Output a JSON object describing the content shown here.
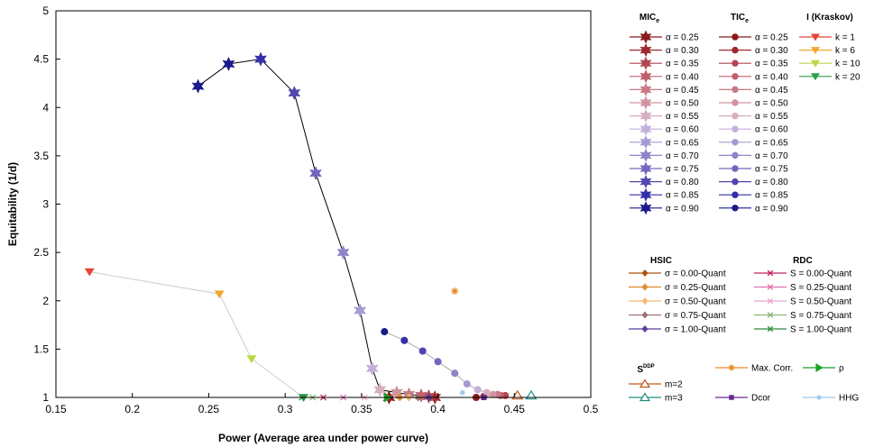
{
  "chart_data": {
    "type": "scatter",
    "xlabel": "Power (Average area under power curve)",
    "ylabel": "Equitability (1/d)",
    "xlim": [
      0.15,
      0.5
    ],
    "ylim": [
      1,
      5
    ],
    "x_ticks": [
      "0.15",
      "0.2",
      "0.25",
      "0.3",
      "0.35",
      "0.4",
      "0.45",
      "0.5"
    ],
    "y_ticks": [
      "1",
      "1.5",
      "2",
      "2.5",
      "3",
      "3.5",
      "4",
      "4.5",
      "5"
    ],
    "grid": false,
    "legend_placement": "right",
    "groups": [
      {
        "title": "MIC",
        "title_sub": "e",
        "marker": "star",
        "connected": true,
        "series": [
          {
            "name": "α = 0.25",
            "color": "#8b1a1a",
            "x": 0.368,
            "y": 1.0
          },
          {
            "name": "α = 0.30",
            "color": "#a0282d",
            "x": 0.398,
            "y": 1.0
          },
          {
            "name": "α = 0.35",
            "color": "#b34652",
            "x": 0.394,
            "y": 1.01
          },
          {
            "name": "α = 0.40",
            "color": "#c0606c",
            "x": 0.389,
            "y": 1.02
          },
          {
            "name": "α = 0.45",
            "color": "#c97a86",
            "x": 0.381,
            "y": 1.03
          },
          {
            "name": "α = 0.50",
            "color": "#d094a0",
            "x": 0.373,
            "y": 1.05
          },
          {
            "name": "α = 0.55",
            "color": "#d6aec0",
            "x": 0.362,
            "y": 1.08
          },
          {
            "name": "α = 0.60",
            "color": "#c4aedb",
            "x": 0.357,
            "y": 1.3
          },
          {
            "name": "α = 0.65",
            "color": "#a59ad2",
            "x": 0.349,
            "y": 1.9
          },
          {
            "name": "α = 0.70",
            "color": "#8e84c8",
            "x": 0.338,
            "y": 2.5
          },
          {
            "name": "α = 0.75",
            "color": "#7366bd",
            "x": 0.32,
            "y": 3.32
          },
          {
            "name": "α = 0.80",
            "color": "#5145b0",
            "x": 0.306,
            "y": 4.15
          },
          {
            "name": "α = 0.85",
            "color": "#3330a6",
            "x": 0.284,
            "y": 4.5
          },
          {
            "name": "α = 0.90",
            "color": "#1a1a8c",
            "x": 0.263,
            "y": 4.45
          },
          {
            "name": "",
            "color": "#1a1a8c",
            "x": 0.243,
            "y": 4.22
          }
        ]
      },
      {
        "title": "TIC",
        "title_sub": "e",
        "marker": "circle",
        "connected": true,
        "series": [
          {
            "name": "α = 0.25",
            "color": "#8b1a1a",
            "x": 0.425,
            "y": 1.0
          },
          {
            "name": "α = 0.30",
            "color": "#a0282d",
            "x": 0.43,
            "y": 1.01
          },
          {
            "name": "α = 0.35",
            "color": "#b34652",
            "x": 0.444,
            "y": 1.02
          },
          {
            "name": "α = 0.40",
            "color": "#c0606c",
            "x": 0.441,
            "y": 1.02
          },
          {
            "name": "α = 0.45",
            "color": "#c97a86",
            "x": 0.439,
            "y": 1.03
          },
          {
            "name": "α = 0.50",
            "color": "#d094a0",
            "x": 0.436,
            "y": 1.03
          },
          {
            "name": "α = 0.55",
            "color": "#d6aec0",
            "x": 0.432,
            "y": 1.05
          },
          {
            "name": "α = 0.60",
            "color": "#c4aedb",
            "x": 0.426,
            "y": 1.08
          },
          {
            "name": "α = 0.65",
            "color": "#a59ad2",
            "x": 0.419,
            "y": 1.14
          },
          {
            "name": "α = 0.70",
            "color": "#8e84c8",
            "x": 0.411,
            "y": 1.25
          },
          {
            "name": "α = 0.75",
            "color": "#7366bd",
            "x": 0.4,
            "y": 1.37
          },
          {
            "name": "α = 0.80",
            "color": "#5145b0",
            "x": 0.39,
            "y": 1.48
          },
          {
            "name": "α = 0.85",
            "color": "#3330a6",
            "x": 0.378,
            "y": 1.59
          },
          {
            "name": "α = 0.90",
            "color": "#1a1a8c",
            "x": 0.365,
            "y": 1.68
          }
        ]
      },
      {
        "title": "I (Kraskov)",
        "title_sub": "",
        "marker": "triangle-down",
        "connected": true,
        "series": [
          {
            "name": "k = 1",
            "color": "#e8443a",
            "x": 0.172,
            "y": 2.3
          },
          {
            "name": "k = 6",
            "color": "#f0a830",
            "x": 0.257,
            "y": 2.07
          },
          {
            "name": "k = 10",
            "color": "#b8d848",
            "x": 0.278,
            "y": 1.4
          },
          {
            "name": "k = 20",
            "color": "#2e9e4a",
            "x": 0.312,
            "y": 1.0
          }
        ]
      },
      {
        "title": "HSIC",
        "title_sub": "",
        "marker": "diamond",
        "connected": false,
        "series": [
          {
            "name": "σ = 0.00-Quant",
            "color": "#b0520e",
            "x": 0.367,
            "y": 1.0
          },
          {
            "name": "σ = 0.25-Quant",
            "color": "#e08a30",
            "x": 0.375,
            "y": 1.0
          },
          {
            "name": "σ = 0.50-Quant",
            "color": "#f5b870",
            "x": 0.381,
            "y": 1.0
          },
          {
            "name": "σ = 0.75-Quant",
            "color": "#a07070",
            "x": 0.387,
            "y": 1.0
          },
          {
            "name": "σ = 1.00-Quant",
            "color": "#5a3fa0",
            "x": 0.394,
            "y": 1.0
          }
        ]
      },
      {
        "title": "RDC",
        "title_sub": "",
        "marker": "x",
        "connected": false,
        "series": [
          {
            "name": "S = 0.00-Quant",
            "color": "#c02060",
            "x": 0.325,
            "y": 1.0
          },
          {
            "name": "S = 0.25-Quant",
            "color": "#e070b0",
            "x": 0.338,
            "y": 1.0
          },
          {
            "name": "S = 0.50-Quant",
            "color": "#e8a8d0",
            "x": 0.352,
            "y": 1.0
          },
          {
            "name": "S = 0.75-Quant",
            "color": "#88b878",
            "x": 0.318,
            "y": 1.0
          },
          {
            "name": "S = 1.00-Quant",
            "color": "#2e8a3a",
            "x": 0.311,
            "y": 1.0
          }
        ]
      },
      {
        "title": "S",
        "title_sup": "DDP",
        "marker": "triangle-up-open",
        "connected": false,
        "series": [
          {
            "name": "m=2",
            "color": "#c05818",
            "x": 0.452,
            "y": 1.02
          },
          {
            "name": "m=3",
            "color": "#1e9080",
            "x": 0.461,
            "y": 1.02
          }
        ]
      },
      {
        "title": "",
        "marker": "asterisk",
        "connected": false,
        "series": [
          {
            "name": "Max. Corr.",
            "color": "#e88a20",
            "x": 0.411,
            "y": 2.1
          }
        ]
      },
      {
        "title": "",
        "marker": "triangle-right",
        "connected": false,
        "series": [
          {
            "name": "ρ",
            "color": "#18a028",
            "x": 0.367,
            "y": 1.0
          }
        ]
      },
      {
        "title": "",
        "marker": "square",
        "connected": false,
        "series": [
          {
            "name": "Dcor",
            "color": "#6a2a90",
            "x": 0.43,
            "y": 1.0
          }
        ]
      },
      {
        "title": "",
        "marker": "asterisk-small",
        "connected": false,
        "series": [
          {
            "name": "HHG",
            "color": "#a0c8e8",
            "x": 0.416,
            "y": 1.05
          }
        ]
      }
    ]
  }
}
